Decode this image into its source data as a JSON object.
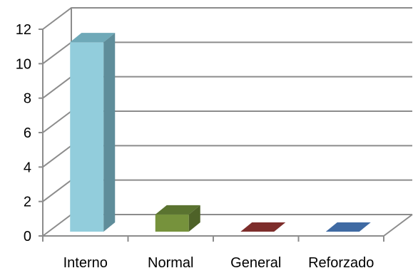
{
  "chart_data": {
    "type": "bar",
    "style": "3d-column",
    "title": "",
    "xlabel": "",
    "ylabel": "",
    "ylim": [
      0,
      12
    ],
    "yticks": [
      0,
      2,
      4,
      6,
      8,
      10,
      12
    ],
    "grid": true,
    "legend": "none",
    "categories": [
      "Interno",
      "Normal",
      "General",
      "Reforzado"
    ],
    "values": [
      11,
      1,
      0,
      0
    ],
    "colors": [
      "#92cddc",
      "#76923c",
      "#953735",
      "#4f81bd"
    ],
    "side_colors": [
      "#5f8d9a",
      "#4e6228",
      "#6b2523",
      "#345a8a"
    ],
    "top_colors": [
      "#6fa9b8",
      "#5a7330",
      "#7d2d2b",
      "#3f6aa3"
    ]
  }
}
